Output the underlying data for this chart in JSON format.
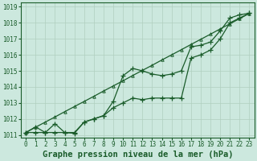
{
  "title": "Graphe pression niveau de la mer (hPa)",
  "bg_color": "#cce8de",
  "grid_color": "#b0cfbf",
  "line_color": "#1a5c2a",
  "xlim_min": -0.5,
  "xlim_max": 23.5,
  "ylim_min": 1010.85,
  "ylim_max": 1019.25,
  "xticks": [
    0,
    1,
    2,
    3,
    4,
    5,
    6,
    7,
    8,
    9,
    10,
    11,
    12,
    13,
    14,
    15,
    16,
    17,
    18,
    19,
    20,
    21,
    22,
    23
  ],
  "yticks": [
    1011,
    1012,
    1013,
    1014,
    1015,
    1016,
    1017,
    1018,
    1019
  ],
  "hours": [
    0,
    1,
    2,
    3,
    4,
    5,
    6,
    7,
    8,
    9,
    10,
    11,
    12,
    13,
    14,
    15,
    16,
    17,
    18,
    19,
    20,
    21,
    22,
    23
  ],
  "line_straight": [
    1011.15,
    1011.48,
    1011.8,
    1012.12,
    1012.45,
    1012.77,
    1013.09,
    1013.41,
    1013.74,
    1014.06,
    1014.38,
    1014.71,
    1015.03,
    1015.35,
    1015.68,
    1016.0,
    1016.32,
    1016.65,
    1016.97,
    1017.29,
    1017.62,
    1017.94,
    1018.26,
    1018.59
  ],
  "line_high": [
    1011.15,
    1011.15,
    1011.15,
    1011.15,
    1011.15,
    1011.15,
    1011.8,
    1012.0,
    1012.2,
    1013.1,
    1014.7,
    1015.15,
    1015.0,
    1014.8,
    1014.7,
    1014.8,
    1015.0,
    1016.5,
    1016.6,
    1016.8,
    1017.5,
    1018.3,
    1018.5,
    1018.6
  ],
  "line_low": [
    1011.15,
    1011.5,
    1011.15,
    1011.7,
    1011.15,
    1011.1,
    1011.8,
    1012.0,
    1012.2,
    1012.7,
    1013.0,
    1013.3,
    1013.2,
    1013.3,
    1013.3,
    1013.3,
    1013.3,
    1015.8,
    1016.0,
    1016.3,
    1017.0,
    1018.0,
    1018.3,
    1018.6
  ],
  "tick_fontsize": 5.5,
  "xlabel_fontsize": 7.5
}
